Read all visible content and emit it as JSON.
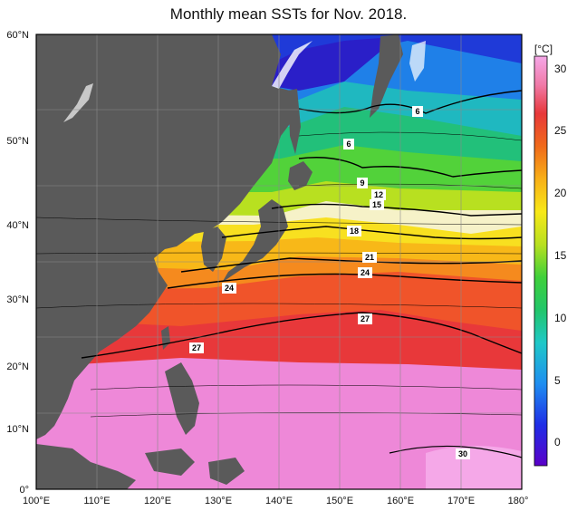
{
  "title": "Monthly mean SSTs for Nov. 2018.",
  "lon_ticks": [
    "100°E",
    "110°E",
    "120°E",
    "130°E",
    "140°E",
    "150°E",
    "160°E",
    "170°E",
    "180°"
  ],
  "lat_ticks": [
    "60°N",
    "50°N",
    "40°N",
    "30°N",
    "20°N",
    "10°N",
    "0°"
  ],
  "colorbar": {
    "unit": "[°C]",
    "ticks": [
      "30",
      "25",
      "20",
      "15",
      "10",
      "5",
      "0"
    ],
    "range": [
      -2,
      31
    ]
  },
  "contour_labels": [
    "6",
    "6",
    "9",
    "12",
    "15",
    "18",
    "21",
    "24",
    "24",
    "27",
    "27",
    "30"
  ],
  "colors": {
    "land": "#5a5a5a",
    "ice": "#ffffff",
    "warm_pool": "#ee88d8",
    "tropics": "#e8383a"
  }
}
